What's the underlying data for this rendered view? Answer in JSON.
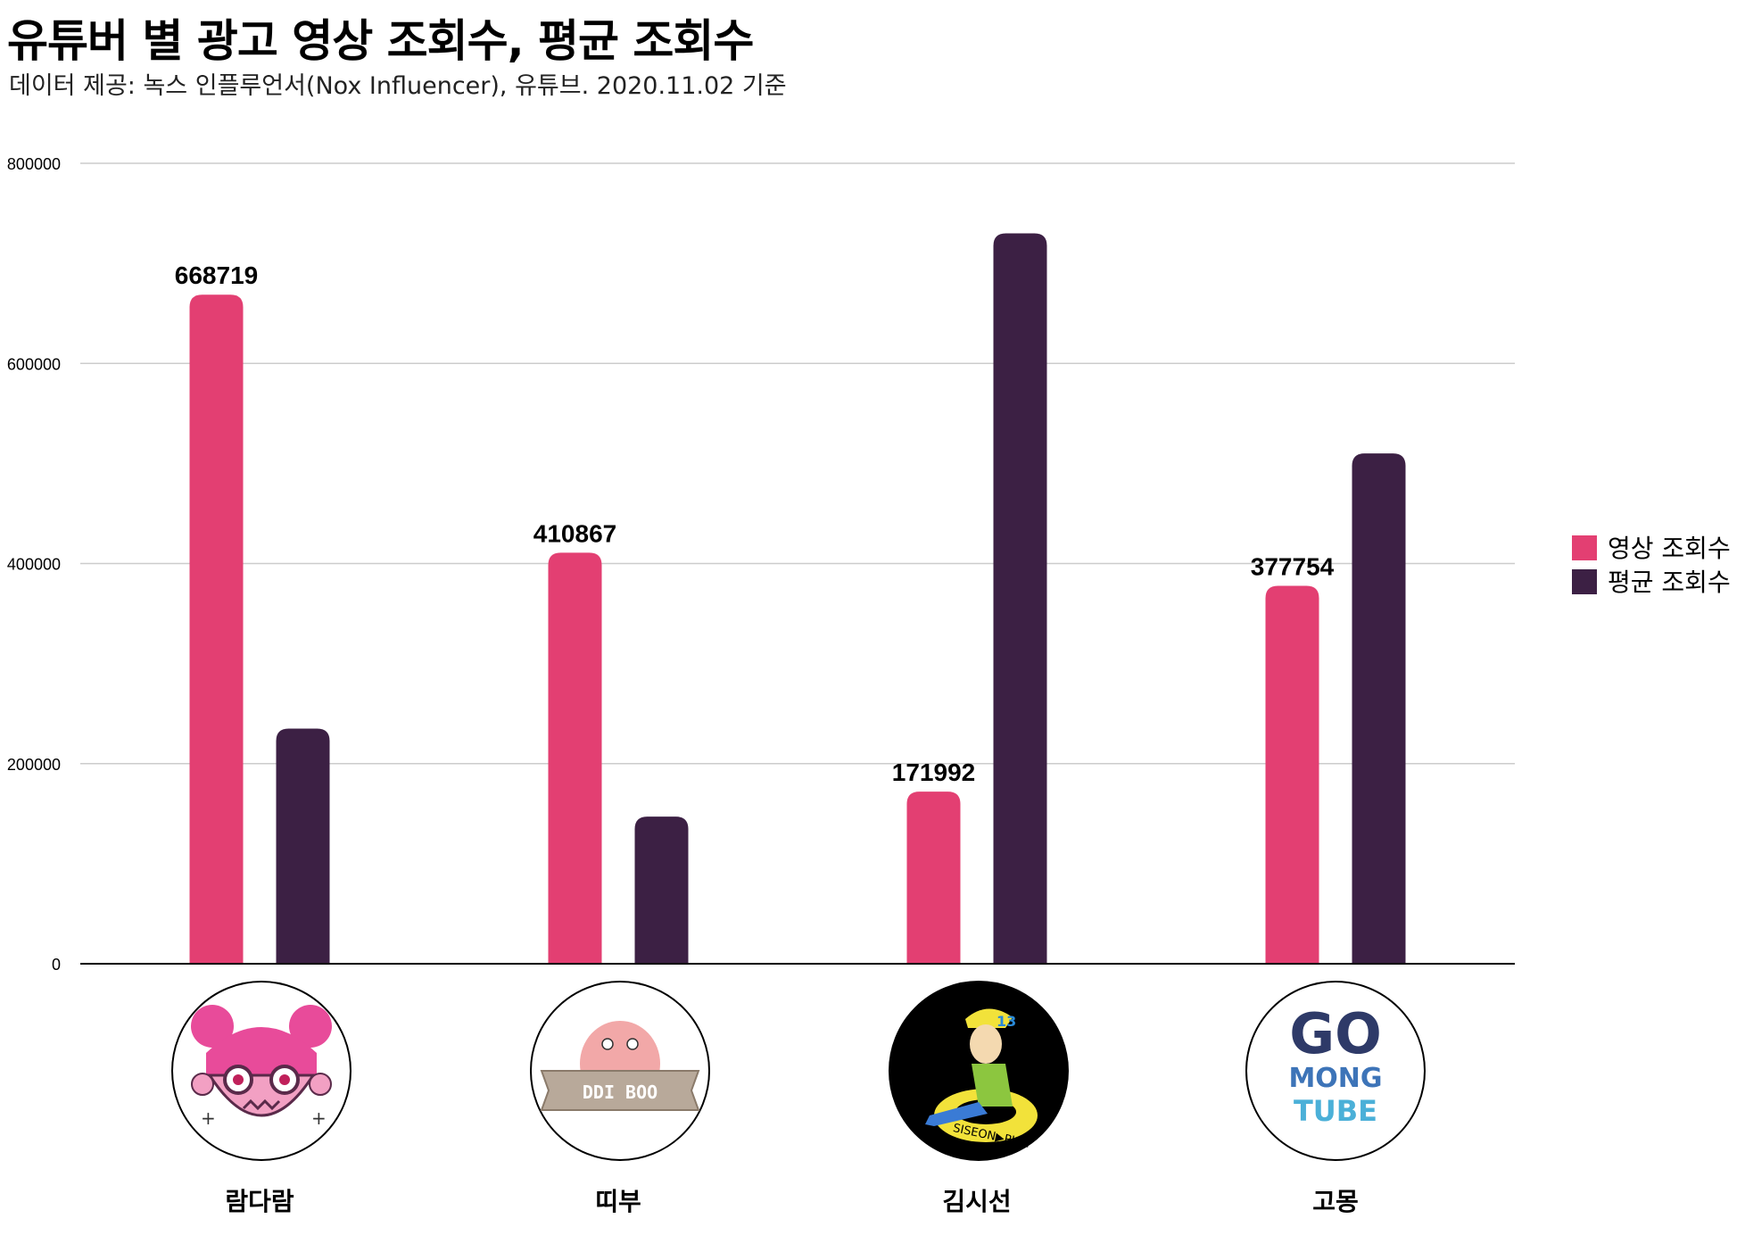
{
  "title": "유튜버 별 광고 영상 조회수, 평균 조회수",
  "subtitle": "데이터 제공: 녹스 인플루언서(Nox Influencer), 유튜브. 2020.11.02 기준",
  "colors": {
    "ad_views": "#E33F72",
    "avg_views": "#3C2044",
    "grid": "#cccccc",
    "axis": "#000000"
  },
  "chart_data": {
    "type": "bar",
    "categories": [
      "람다람",
      "띠부",
      "김시선",
      "고몽"
    ],
    "series": [
      {
        "name": "영상 조회수",
        "values": [
          668719,
          410867,
          171992,
          377754
        ],
        "labels": [
          "668719",
          "410867",
          "171992",
          "377754"
        ]
      },
      {
        "name": "평균 조회수",
        "values": [
          235000,
          147000,
          730000,
          510000
        ]
      }
    ],
    "ylim": [
      0,
      800000
    ],
    "yticks": [
      0,
      200000,
      400000,
      600000,
      800000
    ],
    "ytick_labels": [
      "0",
      "200000",
      "400000",
      "600000",
      "800000"
    ],
    "grid": true,
    "legend_position": "right"
  },
  "logos": [
    {
      "channel": "람다람",
      "icon": "ramdaram-avatar-icon"
    },
    {
      "channel": "띠부",
      "icon": "ddiboo-avatar-icon",
      "text": "DDI BOO"
    },
    {
      "channel": "김시선",
      "icon": "siseon-avatar-icon",
      "text": "SISEON▶PLAY",
      "number": "13"
    },
    {
      "channel": "고몽",
      "icon": "gomong-avatar-icon",
      "lines": [
        "GO",
        "MONG",
        "TUBE"
      ]
    }
  ]
}
